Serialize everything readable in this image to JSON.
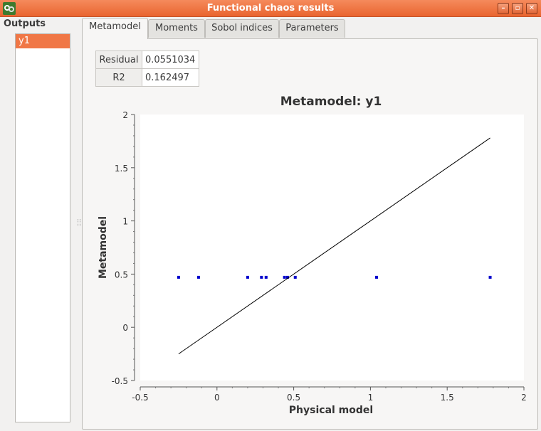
{
  "window": {
    "title": "Functional chaos results",
    "buttons": {
      "minimize": "–",
      "maximize": "▫",
      "close": "✕"
    }
  },
  "sidebar": {
    "label": "Outputs",
    "items": [
      "y1"
    ]
  },
  "tabs": [
    "Metamodel",
    "Moments",
    "Sobol indices",
    "Parameters"
  ],
  "active_tab": "Metamodel",
  "stats": {
    "residual_label": "Residual",
    "residual_value": "0.0551034",
    "r2_label": "R2",
    "r2_value": "0.162497"
  },
  "colors": {
    "accent": "#f07746",
    "points": "#0000cc",
    "line": "#000000"
  },
  "chart_data": {
    "type": "scatter",
    "title": "Metamodel: y1",
    "xlabel": "Physical model",
    "ylabel": "Metamodel",
    "xlim": [
      -0.5,
      2
    ],
    "ylim": [
      -0.5,
      2
    ],
    "xticks": [
      "-0.5",
      "0",
      "0.5",
      "1",
      "1.5",
      "2"
    ],
    "yticks": [
      "-0.5",
      "0",
      "0.5",
      "1",
      "1.5",
      "2"
    ],
    "grid": false,
    "series": [
      {
        "kind": "points",
        "x": [
          -0.25,
          -0.12,
          0.2,
          0.29,
          0.32,
          0.44,
          0.46,
          0.51,
          1.04,
          1.78
        ],
        "y": [
          0.47,
          0.47,
          0.47,
          0.47,
          0.47,
          0.47,
          0.47,
          0.47,
          0.47,
          0.47
        ]
      },
      {
        "kind": "line",
        "x": [
          -0.25,
          1.78
        ],
        "y": [
          -0.25,
          1.78
        ]
      }
    ]
  }
}
